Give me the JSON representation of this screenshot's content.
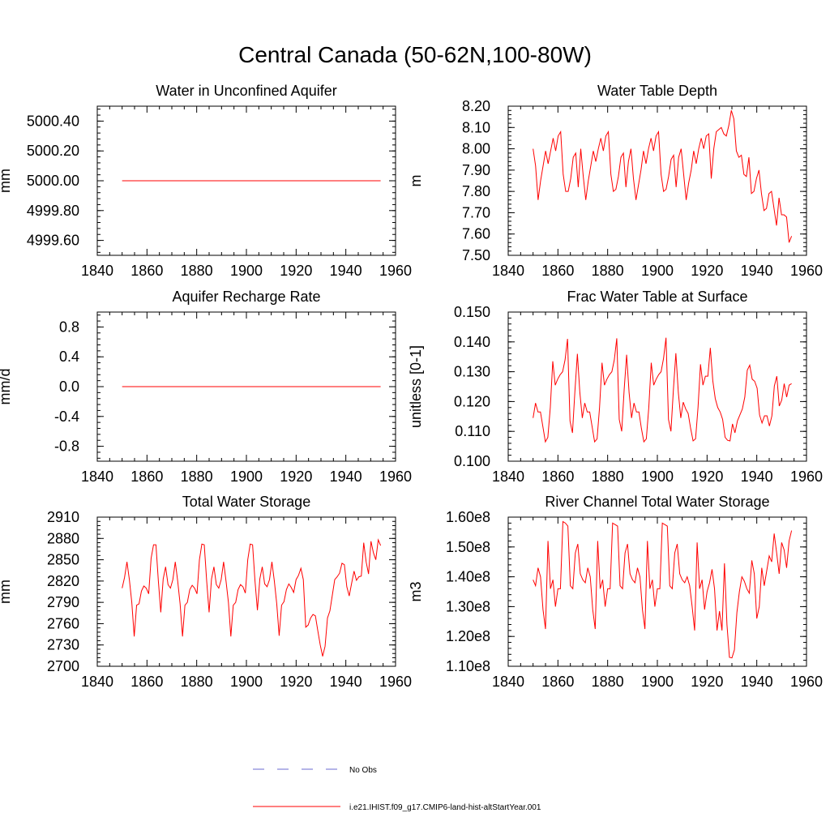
{
  "main_title": "Central Canada (50-62N,100-80W)",
  "colors": {
    "model": "#ff0000",
    "obs": "#6a6ad0",
    "axis": "#000000"
  },
  "legend": {
    "entries": [
      {
        "label": "No Obs",
        "style": "dashed",
        "color": "#6a6ad0"
      },
      {
        "label": "i.e21.IHIST.f09_g17.CMIP6-land-hist-altStartYear.001",
        "style": "solid",
        "color": "#ff0000"
      }
    ]
  },
  "chart_data": [
    {
      "type": "line",
      "title": "Water in Unconfined Aquifer",
      "ylabel": "mm",
      "xlim": [
        1840,
        1960
      ],
      "ylim": [
        4999.5,
        5000.5
      ],
      "xticks": [
        1840,
        1860,
        1880,
        1900,
        1920,
        1940,
        1960
      ],
      "yticks": [
        4999.6,
        4999.8,
        5000.0,
        5000.2,
        5000.4
      ],
      "ytick_labels": [
        "4999.60",
        "4999.80",
        "5000.00",
        "5000.20",
        "5000.40"
      ],
      "x_start": 1850,
      "x_end": 1954,
      "series": [
        {
          "values": [
            5000.0,
            5000.0
          ]
        }
      ]
    },
    {
      "type": "line",
      "title": "Water Table Depth",
      "ylabel": "m",
      "xlim": [
        1840,
        1960
      ],
      "ylim": [
        7.5,
        8.2
      ],
      "xticks": [
        1840,
        1860,
        1880,
        1900,
        1920,
        1940,
        1960
      ],
      "yticks": [
        7.5,
        7.6,
        7.7,
        7.8,
        7.9,
        8.0,
        8.1,
        8.2
      ],
      "ytick_labels": [
        "7.50",
        "7.60",
        "7.70",
        "7.80",
        "7.90",
        "8.00",
        "8.10",
        "8.20"
      ],
      "x_start": 1850,
      "x_end": 1954,
      "series": [
        {
          "values": [
            8.0,
            7.92,
            7.76,
            7.85,
            7.92,
            7.99,
            7.93,
            7.99,
            8.05,
            7.99,
            8.06,
            8.08,
            7.88,
            7.8,
            7.8,
            7.86,
            7.96,
            7.98,
            7.82,
            8.0,
            7.87,
            7.76,
            7.85,
            7.92,
            7.99,
            7.94,
            8.0,
            8.05,
            7.99,
            8.06,
            8.08,
            7.88,
            7.8,
            7.81,
            7.87,
            7.96,
            7.98,
            7.82,
            7.94,
            8.0,
            7.86,
            7.76,
            7.83,
            7.9,
            7.99,
            7.93,
            8.0,
            8.05,
            7.99,
            8.06,
            8.08,
            7.88,
            7.8,
            7.81,
            7.87,
            7.95,
            7.97,
            7.82,
            7.96,
            8.0,
            7.88,
            7.76,
            7.84,
            7.9,
            7.99,
            7.93,
            8.0,
            8.05,
            8.0,
            8.06,
            8.07,
            7.86,
            8.0,
            8.08,
            8.09,
            8.1,
            8.07,
            8.06,
            8.11,
            8.18,
            8.14,
            7.99,
            7.96,
            7.97,
            7.88,
            7.87,
            7.96,
            7.79,
            7.8,
            7.86,
            7.9,
            7.79,
            7.71,
            7.72,
            7.79,
            7.8,
            7.72,
            7.64,
            7.77,
            7.69,
            7.69,
            7.68,
            7.56,
            7.59
          ]
        }
      ]
    },
    {
      "type": "line",
      "title": "Aquifer Recharge Rate",
      "ylabel": "mm/d",
      "xlim": [
        1840,
        1960
      ],
      "ylim": [
        -1.0,
        1.0
      ],
      "xticks": [
        1840,
        1860,
        1880,
        1900,
        1920,
        1940,
        1960
      ],
      "yticks": [
        -0.8,
        -0.4,
        0.0,
        0.4,
        0.8
      ],
      "ytick_labels": [
        "-0.8",
        "-0.4",
        "0.0",
        "0.4",
        "0.8"
      ],
      "x_start": 1850,
      "x_end": 1954,
      "series": [
        {
          "values": [
            0.0,
            0.0
          ]
        }
      ]
    },
    {
      "type": "line",
      "title": "Frac Water Table at Surface",
      "ylabel": "unitless [0-1]",
      "xlim": [
        1840,
        1960
      ],
      "ylim": [
        0.1,
        0.15
      ],
      "xticks": [
        1840,
        1860,
        1880,
        1900,
        1920,
        1940,
        1960
      ],
      "yticks": [
        0.1,
        0.11,
        0.12,
        0.13,
        0.14,
        0.15
      ],
      "ytick_labels": [
        "0.100",
        "0.110",
        "0.120",
        "0.130",
        "0.140",
        "0.150"
      ],
      "x_start": 1850,
      "x_end": 1954,
      "series": [
        {
          "values": [
            0.1145,
            0.1195,
            0.1165,
            0.1165,
            0.1115,
            0.1065,
            0.108,
            0.118,
            0.1335,
            0.1255,
            0.1275,
            0.129,
            0.13,
            0.134,
            0.141,
            0.1135,
            0.1095,
            0.1235,
            0.136,
            0.123,
            0.1145,
            0.1195,
            0.1165,
            0.1165,
            0.1115,
            0.1065,
            0.1075,
            0.118,
            0.133,
            0.1255,
            0.1275,
            0.129,
            0.13,
            0.134,
            0.1412,
            0.114,
            0.11,
            0.124,
            0.1357,
            0.123,
            0.1145,
            0.1195,
            0.1165,
            0.1165,
            0.111,
            0.1065,
            0.1075,
            0.118,
            0.133,
            0.1255,
            0.1275,
            0.129,
            0.13,
            0.1345,
            0.1414,
            0.114,
            0.11,
            0.124,
            0.1362,
            0.123,
            0.1145,
            0.1198,
            0.1175,
            0.116,
            0.111,
            0.1068,
            0.1075,
            0.118,
            0.1325,
            0.1255,
            0.1285,
            0.1285,
            0.138,
            0.127,
            0.121,
            0.118,
            0.1165,
            0.114,
            0.108,
            0.107,
            0.1068,
            0.1125,
            0.1095,
            0.1135,
            0.1155,
            0.1175,
            0.1215,
            0.1305,
            0.1322,
            0.1275,
            0.1268,
            0.1245,
            0.1155,
            0.1128,
            0.1152,
            0.1152,
            0.1118,
            0.1152,
            0.1252,
            0.1285,
            0.1185,
            0.1205,
            0.126,
            0.1215,
            0.1255,
            0.126
          ]
        }
      ]
    },
    {
      "type": "line",
      "title": "Total Water Storage",
      "ylabel": "mm",
      "xlim": [
        1840,
        1960
      ],
      "ylim": [
        2700,
        2910
      ],
      "xticks": [
        1840,
        1860,
        1880,
        1900,
        1920,
        1940,
        1960
      ],
      "yticks": [
        2700,
        2730,
        2760,
        2790,
        2820,
        2850,
        2880,
        2910
      ],
      "ytick_labels": [
        "2700",
        "2730",
        "2760",
        "2790",
        "2820",
        "2850",
        "2880",
        "2910"
      ],
      "x_start": 1850,
      "x_end": 1954,
      "series": [
        {
          "values": [
            2810,
            2825,
            2847,
            2822,
            2790,
            2742,
            2786,
            2788,
            2806,
            2813,
            2810,
            2802,
            2852,
            2871,
            2871,
            2820,
            2776,
            2823,
            2840,
            2815,
            2810,
            2822,
            2847,
            2820,
            2788,
            2742,
            2786,
            2790,
            2808,
            2814,
            2810,
            2802,
            2850,
            2872,
            2871,
            2820,
            2776,
            2823,
            2840,
            2815,
            2810,
            2822,
            2847,
            2820,
            2790,
            2742,
            2786,
            2790,
            2808,
            2815,
            2812,
            2803,
            2850,
            2872,
            2871,
            2820,
            2779,
            2823,
            2840,
            2816,
            2812,
            2822,
            2847,
            2820,
            2788,
            2743,
            2786,
            2791,
            2808,
            2816,
            2811,
            2804,
            2822,
            2828,
            2838,
            2822,
            2755,
            2758,
            2768,
            2773,
            2771,
            2750,
            2730,
            2714,
            2728,
            2768,
            2778,
            2800,
            2822,
            2826,
            2831,
            2845,
            2843,
            2812,
            2799,
            2817,
            2834,
            2821,
            2826,
            2827,
            2874,
            2847,
            2830,
            2876,
            2860,
            2850,
            2878,
            2870
          ]
        }
      ]
    },
    {
      "type": "line",
      "title": "River Channel Total Water Storage",
      "ylabel": "m3",
      "xlim": [
        1840,
        1960
      ],
      "ylim": [
        110000000.0,
        160000000.0
      ],
      "xticks": [
        1840,
        1860,
        1880,
        1900,
        1920,
        1940,
        1960
      ],
      "yticks": [
        110000000.0,
        120000000.0,
        130000000.0,
        140000000.0,
        150000000.0,
        160000000.0
      ],
      "ytick_labels": [
        "1.10e8",
        "1.20e8",
        "1.30e8",
        "1.40e8",
        "1.50e8",
        "1.60e8"
      ],
      "x_start": 1850,
      "x_end": 1954,
      "series": [
        {
          "values": [
            139000000.0,
            137000000.0,
            143000000.0,
            140000000.0,
            129000000.0,
            122500000.0,
            152000000.0,
            136000000.0,
            139000000.0,
            130000000.0,
            136000000.0,
            136000000.0,
            158500000.0,
            158000000.0,
            157000000.0,
            137000000.0,
            136000000.0,
            148000000.0,
            151000000.0,
            141000000.0,
            139000000.0,
            138000000.0,
            143000000.0,
            140000000.0,
            129000000.0,
            122500000.0,
            152000000.0,
            136000000.0,
            139000000.0,
            130000000.0,
            136000000.0,
            136000000.0,
            158000000.0,
            157500000.0,
            157000000.0,
            137000000.0,
            136000000.0,
            148000000.0,
            151000000.0,
            141000000.0,
            139000000.0,
            138000000.0,
            143000000.0,
            140000000.0,
            129000000.0,
            122500000.0,
            152000000.0,
            136000000.0,
            139000000.0,
            130000000.0,
            136000000.0,
            136000000.0,
            158000000.0,
            157500000.0,
            157000000.0,
            137000000.0,
            136000000.0,
            148000000.0,
            151000000.0,
            141000000.0,
            139000000.0,
            138000000.0,
            140000000.0,
            137000000.0,
            130000000.0,
            122000000.0,
            151500000.0,
            136000000.0,
            139000000.0,
            129000000.0,
            135000000.0,
            138000000.0,
            142500000.0,
            136000000.0,
            122000000.0,
            128500000.0,
            122000000.0,
            144500000.0,
            124000000.0,
            113000000.0,
            112800000.0,
            115500000.0,
            128000000.0,
            135000000.0,
            140000000.0,
            138500000.0,
            136000000.0,
            134500000.0,
            145500000.0,
            141000000.0,
            126000000.0,
            130000000.0,
            143000000.0,
            137000000.0,
            142000000.0,
            147000000.0,
            145000000.0,
            154500000.0,
            148000000.0,
            141000000.0,
            151500000.0,
            149000000.0,
            143000000.0,
            152000000.0,
            155500000.0
          ]
        }
      ]
    }
  ]
}
